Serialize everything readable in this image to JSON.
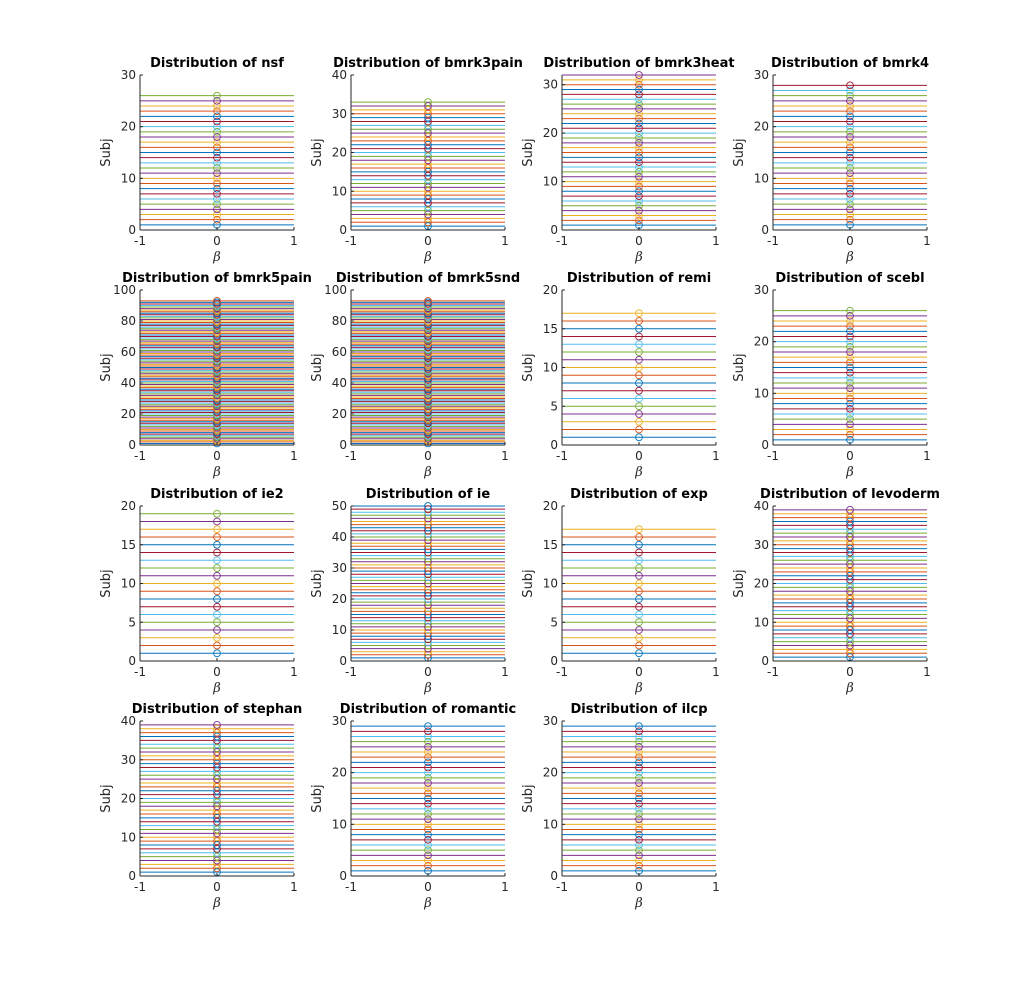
{
  "figure": {
    "series_colors": [
      "#0072BD",
      "#D95319",
      "#EDB120",
      "#7E2F8E",
      "#77AC30",
      "#4DBEEE",
      "#A2142F"
    ]
  },
  "chart_data": [
    {
      "type": "line",
      "title": "Distribution of nsf",
      "xlabel": "β",
      "ylabel": "Subj",
      "xlim": [
        -1,
        1
      ],
      "ylim": [
        0,
        30
      ],
      "xticks": [
        -1,
        0,
        1
      ],
      "yticks": [
        0,
        10,
        20,
        30
      ],
      "n_subjects": 26,
      "series_x": [
        -1,
        1
      ],
      "marker": "circle",
      "marker_x": 0,
      "grid": false
    },
    {
      "type": "line",
      "title": "Distribution of bmrk3pain",
      "xlabel": "β",
      "ylabel": "Subj",
      "xlim": [
        -1,
        1
      ],
      "ylim": [
        0,
        40
      ],
      "xticks": [
        -1,
        0,
        1
      ],
      "yticks": [
        0,
        10,
        20,
        30,
        40
      ],
      "n_subjects": 33,
      "series_x": [
        -1,
        1
      ],
      "marker": "circle",
      "marker_x": 0,
      "grid": false
    },
    {
      "type": "line",
      "title": "Distribution of bmrk3heat",
      "xlabel": "β",
      "ylabel": "Subj",
      "xlim": [
        -1,
        1
      ],
      "ylim": [
        0,
        32
      ],
      "xticks": [
        -1,
        0,
        1
      ],
      "yticks": [
        0,
        10,
        20,
        30
      ],
      "n_subjects": 32,
      "series_x": [
        -1,
        1
      ],
      "marker": "circle",
      "marker_x": 0,
      "grid": false
    },
    {
      "type": "line",
      "title": "Distribution of bmrk4",
      "xlabel": "β",
      "ylabel": "Subj",
      "xlim": [
        -1,
        1
      ],
      "ylim": [
        0,
        30
      ],
      "xticks": [
        -1,
        0,
        1
      ],
      "yticks": [
        0,
        10,
        20,
        30
      ],
      "n_subjects": 28,
      "series_x": [
        -1,
        1
      ],
      "marker": "circle",
      "marker_x": 0,
      "grid": false
    },
    {
      "type": "line",
      "title": "Distribution of bmrk5pain",
      "xlabel": "β",
      "ylabel": "Subj",
      "xlim": [
        -1,
        1
      ],
      "ylim": [
        0,
        100
      ],
      "xticks": [
        -1,
        0,
        1
      ],
      "yticks": [
        0,
        20,
        40,
        60,
        80,
        100
      ],
      "n_subjects": 93,
      "series_x": [
        -1,
        1
      ],
      "marker": "circle",
      "marker_x": 0,
      "grid": false
    },
    {
      "type": "line",
      "title": "Distribution of bmrk5snd",
      "xlabel": "β",
      "ylabel": "Subj",
      "xlim": [
        -1,
        1
      ],
      "ylim": [
        0,
        100
      ],
      "xticks": [
        -1,
        0,
        1
      ],
      "yticks": [
        0,
        20,
        40,
        60,
        80,
        100
      ],
      "n_subjects": 93,
      "series_x": [
        -1,
        1
      ],
      "marker": "circle",
      "marker_x": 0,
      "grid": false
    },
    {
      "type": "line",
      "title": "Distribution of remi",
      "xlabel": "β",
      "ylabel": "Subj",
      "xlim": [
        -1,
        1
      ],
      "ylim": [
        0,
        20
      ],
      "xticks": [
        -1,
        0,
        1
      ],
      "yticks": [
        0,
        5,
        10,
        15,
        20
      ],
      "n_subjects": 17,
      "series_x": [
        -1,
        1
      ],
      "marker": "circle",
      "marker_x": 0,
      "grid": false
    },
    {
      "type": "line",
      "title": "Distribution of scebl",
      "xlabel": "β",
      "ylabel": "Subj",
      "xlim": [
        -1,
        1
      ],
      "ylim": [
        0,
        30
      ],
      "xticks": [
        -1,
        0,
        1
      ],
      "yticks": [
        0,
        10,
        20,
        30
      ],
      "n_subjects": 26,
      "series_x": [
        -1,
        1
      ],
      "marker": "circle",
      "marker_x": 0,
      "grid": false
    },
    {
      "type": "line",
      "title": "Distribution of ie2",
      "xlabel": "β",
      "ylabel": "Subj",
      "xlim": [
        -1,
        1
      ],
      "ylim": [
        0,
        20
      ],
      "xticks": [
        -1,
        0,
        1
      ],
      "yticks": [
        0,
        5,
        10,
        15,
        20
      ],
      "n_subjects": 19,
      "series_x": [
        -1,
        1
      ],
      "marker": "circle",
      "marker_x": 0,
      "grid": false
    },
    {
      "type": "line",
      "title": "Distribution of ie",
      "xlabel": "β",
      "ylabel": "Subj",
      "xlim": [
        -1,
        1
      ],
      "ylim": [
        0,
        50
      ],
      "xticks": [
        -1,
        0,
        1
      ],
      "yticks": [
        0,
        10,
        20,
        30,
        40,
        50
      ],
      "n_subjects": 50,
      "series_x": [
        -1,
        1
      ],
      "marker": "circle",
      "marker_x": 0,
      "grid": false
    },
    {
      "type": "line",
      "title": "Distribution of exp",
      "xlabel": "β",
      "ylabel": "Subj",
      "xlim": [
        -1,
        1
      ],
      "ylim": [
        0,
        20
      ],
      "xticks": [
        -1,
        0,
        1
      ],
      "yticks": [
        0,
        5,
        10,
        15,
        20
      ],
      "n_subjects": 17,
      "series_x": [
        -1,
        1
      ],
      "marker": "circle",
      "marker_x": 0,
      "grid": false
    },
    {
      "type": "line",
      "title": "Distribution of levoderm",
      "xlabel": "β",
      "ylabel": "Subj",
      "xlim": [
        -1,
        1
      ],
      "ylim": [
        0,
        40
      ],
      "xticks": [
        -1,
        0,
        1
      ],
      "yticks": [
        0,
        10,
        20,
        30,
        40
      ],
      "n_subjects": 39,
      "series_x": [
        -1,
        1
      ],
      "marker": "circle",
      "marker_x": 0,
      "grid": false
    },
    {
      "type": "line",
      "title": "Distribution of stephan",
      "xlabel": "β",
      "ylabel": "Subj",
      "xlim": [
        -1,
        1
      ],
      "ylim": [
        0,
        40
      ],
      "xticks": [
        -1,
        0,
        1
      ],
      "yticks": [
        0,
        10,
        20,
        30,
        40
      ],
      "n_subjects": 39,
      "series_x": [
        -1,
        1
      ],
      "marker": "circle",
      "marker_x": 0,
      "grid": false
    },
    {
      "type": "line",
      "title": "Distribution of romantic",
      "xlabel": "β",
      "ylabel": "Subj",
      "xlim": [
        -1,
        1
      ],
      "ylim": [
        0,
        30
      ],
      "xticks": [
        -1,
        0,
        1
      ],
      "yticks": [
        0,
        10,
        20,
        30
      ],
      "n_subjects": 29,
      "series_x": [
        -1,
        1
      ],
      "marker": "circle",
      "marker_x": 0,
      "grid": false
    },
    {
      "type": "line",
      "title": "Distribution of ilcp",
      "xlabel": "β",
      "ylabel": "Subj",
      "xlim": [
        -1,
        1
      ],
      "ylim": [
        0,
        30
      ],
      "xticks": [
        -1,
        0,
        1
      ],
      "yticks": [
        0,
        10,
        20,
        30
      ],
      "n_subjects": 29,
      "series_x": [
        -1,
        1
      ],
      "marker": "circle",
      "marker_x": 0,
      "grid": false
    }
  ]
}
